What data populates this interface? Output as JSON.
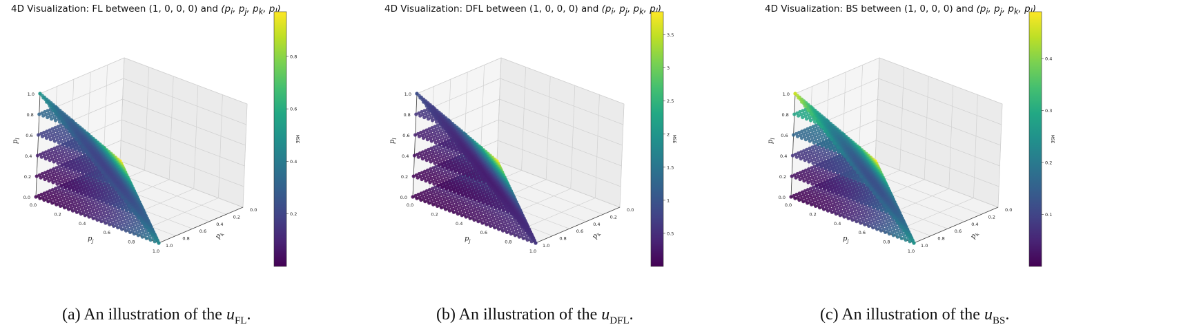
{
  "panels": [
    {
      "title_prefix": "4D Visualization: ",
      "metric": "FL",
      "title_between": " between (1, 0, 0, 0) and ",
      "title_tuple": "(p",
      "caption_prefix": "(a) An illustration of the ",
      "caption_var": "u",
      "caption_sub": "FL",
      "caption_suffix": ".",
      "chart_data": {
        "type": "scatter",
        "projection": "3d",
        "colorbar": {
          "label": "MSE",
          "ticks": [
            0.2,
            0.4,
            0.6,
            0.8
          ],
          "range": [
            0,
            0.97
          ],
          "colormap": "viridis"
        },
        "axes": {
          "x": {
            "label": "p_j",
            "ticks": [
              0.0,
              0.2,
              0.4,
              0.6,
              0.8,
              1.0
            ]
          },
          "y": {
            "label": "p_k",
            "ticks": [
              0.0,
              0.2,
              0.4,
              0.6,
              0.8,
              1.0
            ]
          },
          "z": {
            "label": "p_l",
            "ticks": [
              0.0,
              0.2,
              0.4,
              0.6,
              0.8,
              1.0
            ]
          }
        },
        "color_trend": "increasing toward the p_k = 1 corner",
        "corner_values": {
          "origin": 0.0,
          "pj_corner": 0.45,
          "pk_corner": 0.97,
          "pl_corner": 0.5
        }
      }
    },
    {
      "title_prefix": "4D Visualization: ",
      "metric": "DFL",
      "title_between": " between (1, 0, 0, 0) and ",
      "title_tuple": "(p",
      "caption_prefix": "(b) An illustration of the ",
      "caption_var": "u",
      "caption_sub": "DFL",
      "caption_suffix": ".",
      "chart_data": {
        "type": "scatter",
        "projection": "3d",
        "colorbar": {
          "label": "MSE",
          "ticks": [
            0.5,
            1.0,
            1.5,
            2.0,
            2.5,
            3.0,
            3.5
          ],
          "range": [
            0,
            3.85
          ],
          "colormap": "viridis"
        },
        "axes": {
          "x": {
            "label": "p_j",
            "ticks": [
              0.0,
              0.2,
              0.4,
              0.6,
              0.8,
              1.0
            ]
          },
          "y": {
            "label": "p_k",
            "ticks": [
              0.0,
              0.2,
              0.4,
              0.6,
              0.8,
              1.0
            ]
          },
          "z": {
            "label": "p_l",
            "ticks": [
              0.0,
              0.2,
              0.4,
              0.6,
              0.8,
              1.0
            ]
          }
        },
        "color_trend": "increasing toward the p_k = 1 corner",
        "corner_values": {
          "origin": 0.0,
          "pj_corner": 0.6,
          "pk_corner": 3.85,
          "pl_corner": 0.9
        }
      }
    },
    {
      "title_prefix": "4D Visualization: ",
      "metric": "BS",
      "title_between": " between (1, 0, 0, 0) and ",
      "title_tuple": "(p",
      "caption_prefix": "(c) An illustration of the ",
      "caption_var": "u",
      "caption_sub": "BS",
      "caption_suffix": ".",
      "chart_data": {
        "type": "scatter",
        "projection": "3d",
        "colorbar": {
          "label": "MSE",
          "ticks": [
            0.1,
            0.2,
            0.3,
            0.4
          ],
          "range": [
            0,
            0.49
          ],
          "colormap": "viridis"
        },
        "axes": {
          "x": {
            "label": "p_j",
            "ticks": [
              0.0,
              0.2,
              0.4,
              0.6,
              0.8,
              1.0
            ]
          },
          "y": {
            "label": "p_k",
            "ticks": [
              0.0,
              0.2,
              0.4,
              0.6,
              0.8,
              1.0
            ]
          },
          "z": {
            "label": "p_l",
            "ticks": [
              0.0,
              0.2,
              0.4,
              0.6,
              0.8,
              1.0
            ]
          }
        },
        "color_trend": "increasing toward the p_k = 1 and p_l = 1 corners",
        "corner_values": {
          "origin": 0.0,
          "pj_corner": 0.25,
          "pk_corner": 0.49,
          "pl_corner": 0.45
        }
      }
    }
  ]
}
